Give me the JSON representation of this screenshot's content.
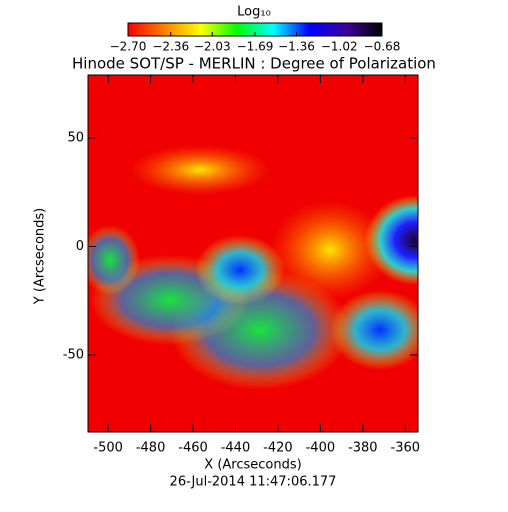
{
  "chart_data": {
    "type": "image",
    "title": "Hinode SOT/SP - MERLIN : Degree of Polarization",
    "x_label": "X (Arcseconds)",
    "y_label": "Y (Arcseconds)",
    "footer": "26-Jul-2014 11:47:06.177",
    "xlim": [
      -509.5,
      -354
    ],
    "xticks": [
      -500,
      -480,
      -460,
      -440,
      -420,
      -400,
      -380,
      -360
    ],
    "ylim": [
      -85.5,
      79
    ],
    "yticks": [
      -50,
      0,
      50
    ],
    "colorbar": {
      "label": "Log₁₀",
      "lim": [
        -2.7,
        -0.68
      ],
      "ticks": [
        {
          "value": -2.7,
          "label": "−2.70"
        },
        {
          "value": -2.36,
          "label": "−2.36"
        },
        {
          "value": -2.03,
          "label": "−2.03"
        },
        {
          "value": -1.69,
          "label": "−1.69"
        },
        {
          "value": -1.36,
          "label": "−1.36"
        },
        {
          "value": -1.02,
          "label": "−1.02"
        },
        {
          "value": -0.68,
          "label": "−0.68"
        }
      ],
      "colormap": [
        "#ff0000",
        "#ff8000",
        "#ffff00",
        "#00ff00",
        "#00ffff",
        "#0000ff",
        "#4000a0",
        "#000000"
      ]
    }
  }
}
